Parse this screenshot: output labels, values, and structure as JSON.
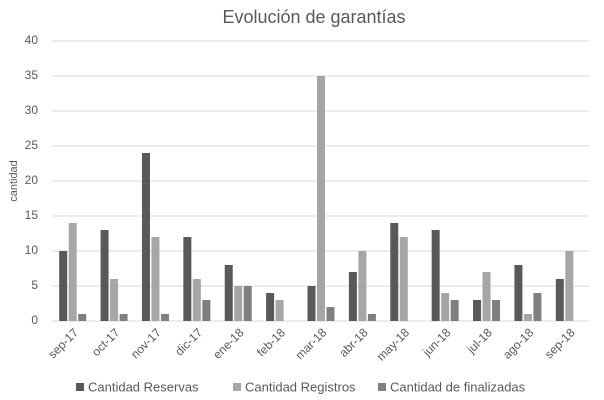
{
  "chart_data": {
    "type": "bar",
    "title": "Evolución de garantías",
    "y_label": "cantidad",
    "categories": [
      "sep-17",
      "oct-17",
      "nov-17",
      "dic-17",
      "ene-18",
      "feb-18",
      "mar-18",
      "abr-18",
      "may-18",
      "jun-18",
      "jul-18",
      "ago-18",
      "sep-18"
    ],
    "series": [
      {
        "name": "Cantidad Reservas",
        "color": "#595959",
        "values": [
          10,
          13,
          24,
          12,
          8,
          4,
          5,
          7,
          14,
          13,
          3,
          8,
          6
        ]
      },
      {
        "name": "Cantidad Registros",
        "color": "#a6a6a6",
        "values": [
          14,
          6,
          12,
          6,
          5,
          3,
          35,
          10,
          12,
          4,
          7,
          1,
          10
        ]
      },
      {
        "name": "Cantidad de finalizadas",
        "color": "#7f7f7f",
        "values": [
          1,
          1,
          1,
          3,
          5,
          0,
          2,
          1,
          0,
          3,
          3,
          4,
          0
        ]
      }
    ],
    "ylim": [
      0,
      40
    ],
    "yticks": [
      0,
      5,
      10,
      15,
      20,
      25,
      30,
      35,
      40
    ],
    "grid": true,
    "legend": "bottom"
  }
}
